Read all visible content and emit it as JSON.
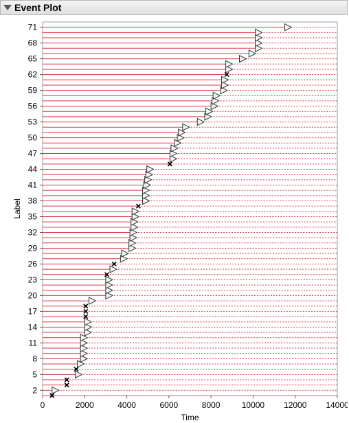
{
  "header": {
    "title": "Event Plot"
  },
  "chart_data": {
    "type": "event",
    "xlabel": "Time",
    "ylabel": "Label",
    "xlim": [
      0,
      14000
    ],
    "ylim": [
      1,
      72
    ],
    "x_ticks": [
      0,
      2000,
      4000,
      6000,
      8000,
      10000,
      12000,
      14000
    ],
    "y_ticks": [
      2,
      5,
      8,
      11,
      14,
      17,
      20,
      23,
      26,
      29,
      32,
      35,
      38,
      41,
      44,
      47,
      50,
      53,
      56,
      59,
      62,
      65,
      68,
      71
    ],
    "colors": {
      "solid_line": "#d9364a",
      "dashed_line": "#d9364a",
      "marker_stroke": "#333333",
      "marker_fill": "#f5f5f5",
      "failure_marker": "#000000"
    },
    "legend": "none",
    "events": [
      {
        "label": 1,
        "time": 450,
        "type": "failure"
      },
      {
        "label": 2,
        "time": 450,
        "type": "censored"
      },
      {
        "label": 3,
        "time": 1150,
        "type": "failure"
      },
      {
        "label": 4,
        "time": 1150,
        "type": "failure"
      },
      {
        "label": 5,
        "time": 1550,
        "type": "censored"
      },
      {
        "label": 6,
        "time": 1600,
        "type": "failure"
      },
      {
        "label": 7,
        "time": 1650,
        "type": "censored"
      },
      {
        "label": 8,
        "time": 1800,
        "type": "censored"
      },
      {
        "label": 9,
        "time": 1800,
        "type": "censored"
      },
      {
        "label": 10,
        "time": 1800,
        "type": "censored"
      },
      {
        "label": 11,
        "time": 1800,
        "type": "censored"
      },
      {
        "label": 12,
        "time": 1800,
        "type": "censored"
      },
      {
        "label": 13,
        "time": 2000,
        "type": "censored"
      },
      {
        "label": 14,
        "time": 2000,
        "type": "censored"
      },
      {
        "label": 15,
        "time": 2000,
        "type": "censored"
      },
      {
        "label": 16,
        "time": 2050,
        "type": "failure"
      },
      {
        "label": 17,
        "time": 2050,
        "type": "failure"
      },
      {
        "label": 18,
        "time": 2050,
        "type": "failure"
      },
      {
        "label": 19,
        "time": 2200,
        "type": "censored"
      },
      {
        "label": 20,
        "time": 3000,
        "type": "censored"
      },
      {
        "label": 21,
        "time": 3000,
        "type": "censored"
      },
      {
        "label": 22,
        "time": 3000,
        "type": "censored"
      },
      {
        "label": 23,
        "time": 3000,
        "type": "censored"
      },
      {
        "label": 24,
        "time": 3050,
        "type": "failure"
      },
      {
        "label": 25,
        "time": 3200,
        "type": "censored"
      },
      {
        "label": 26,
        "time": 3400,
        "type": "failure"
      },
      {
        "label": 27,
        "time": 3700,
        "type": "censored"
      },
      {
        "label": 28,
        "time": 3750,
        "type": "censored"
      },
      {
        "label": 29,
        "time": 4100,
        "type": "censored"
      },
      {
        "label": 30,
        "time": 4100,
        "type": "censored"
      },
      {
        "label": 31,
        "time": 4150,
        "type": "censored"
      },
      {
        "label": 32,
        "time": 4150,
        "type": "censored"
      },
      {
        "label": 33,
        "time": 4200,
        "type": "censored"
      },
      {
        "label": 34,
        "time": 4200,
        "type": "censored"
      },
      {
        "label": 35,
        "time": 4250,
        "type": "censored"
      },
      {
        "label": 36,
        "time": 4250,
        "type": "censored"
      },
      {
        "label": 37,
        "time": 4550,
        "type": "failure"
      },
      {
        "label": 38,
        "time": 4750,
        "type": "censored"
      },
      {
        "label": 39,
        "time": 4750,
        "type": "censored"
      },
      {
        "label": 40,
        "time": 4750,
        "type": "censored"
      },
      {
        "label": 41,
        "time": 4800,
        "type": "censored"
      },
      {
        "label": 42,
        "time": 4850,
        "type": "censored"
      },
      {
        "label": 43,
        "time": 4900,
        "type": "censored"
      },
      {
        "label": 44,
        "time": 4950,
        "type": "censored"
      },
      {
        "label": 45,
        "time": 6050,
        "type": "failure"
      },
      {
        "label": 46,
        "time": 6050,
        "type": "censored"
      },
      {
        "label": 47,
        "time": 6050,
        "type": "censored"
      },
      {
        "label": 48,
        "time": 6100,
        "type": "censored"
      },
      {
        "label": 49,
        "time": 6250,
        "type": "censored"
      },
      {
        "label": 50,
        "time": 6400,
        "type": "censored"
      },
      {
        "label": 51,
        "time": 6450,
        "type": "censored"
      },
      {
        "label": 52,
        "time": 6650,
        "type": "censored"
      },
      {
        "label": 53,
        "time": 7350,
        "type": "censored"
      },
      {
        "label": 54,
        "time": 7700,
        "type": "censored"
      },
      {
        "label": 55,
        "time": 7750,
        "type": "censored"
      },
      {
        "label": 56,
        "time": 8000,
        "type": "censored"
      },
      {
        "label": 57,
        "time": 8050,
        "type": "censored"
      },
      {
        "label": 58,
        "time": 8100,
        "type": "censored"
      },
      {
        "label": 59,
        "time": 8450,
        "type": "censored"
      },
      {
        "label": 60,
        "time": 8500,
        "type": "censored"
      },
      {
        "label": 61,
        "time": 8500,
        "type": "censored"
      },
      {
        "label": 62,
        "time": 8750,
        "type": "failure"
      },
      {
        "label": 63,
        "time": 8700,
        "type": "censored"
      },
      {
        "label": 64,
        "time": 8700,
        "type": "censored"
      },
      {
        "label": 65,
        "time": 9350,
        "type": "censored"
      },
      {
        "label": 66,
        "time": 9800,
        "type": "censored"
      },
      {
        "label": 67,
        "time": 10100,
        "type": "censored"
      },
      {
        "label": 68,
        "time": 10100,
        "type": "censored"
      },
      {
        "label": 69,
        "time": 10100,
        "type": "censored"
      },
      {
        "label": 70,
        "time": 10100,
        "type": "censored"
      },
      {
        "label": 71,
        "time": 11500,
        "type": "censored"
      }
    ]
  }
}
